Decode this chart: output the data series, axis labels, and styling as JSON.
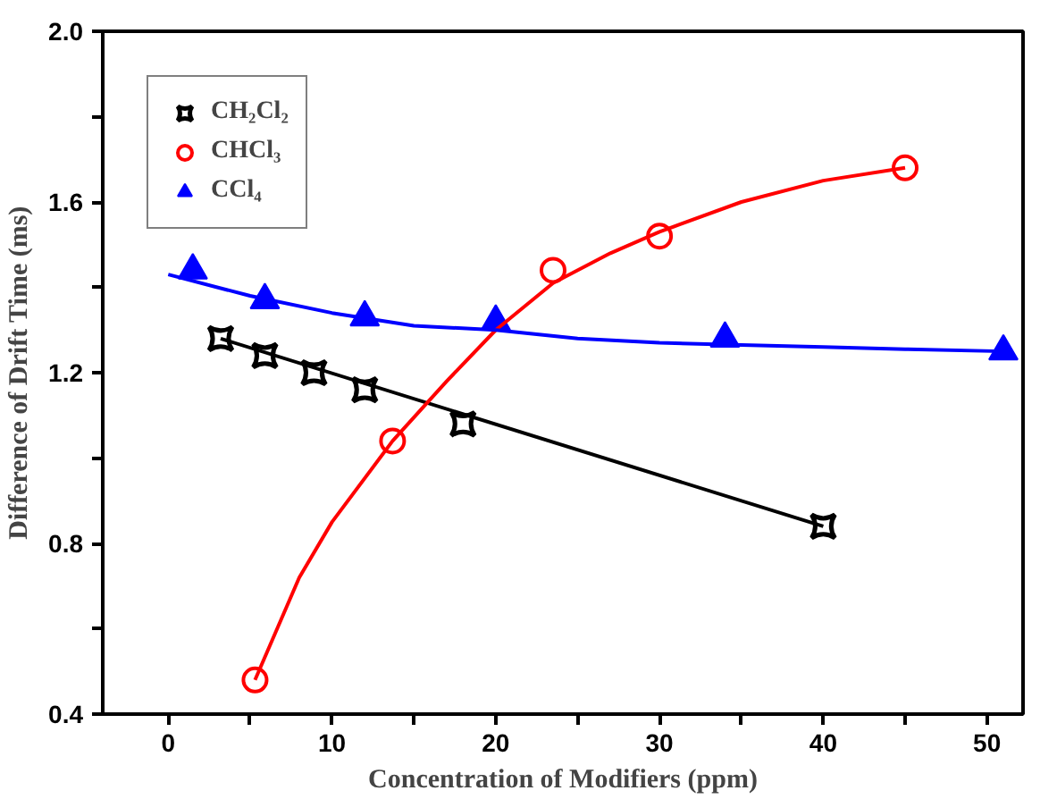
{
  "chart_data": {
    "type": "scatter",
    "xlabel": "Concentration of Modifiers (ppm)",
    "ylabel": "Difference of Drift Time (ms)",
    "xlim": [
      -4,
      52.2
    ],
    "ylim": [
      0.4,
      2.0
    ],
    "xticks": [
      0,
      {
        "value": 5,
        "label": null
      },
      10,
      {
        "value": 15,
        "label": null
      },
      20,
      {
        "value": 25,
        "label": null
      },
      30,
      {
        "value": 35,
        "label": null
      },
      40,
      {
        "value": 45,
        "label": null
      },
      50
    ],
    "yticks": [
      {
        "value": 0.4,
        "label": "0.4"
      },
      {
        "value": 0.6,
        "label": null
      },
      {
        "value": 0.8,
        "label": "0.8"
      },
      {
        "value": 1.0,
        "label": null
      },
      {
        "value": 1.2,
        "label": "1.2"
      },
      {
        "value": 1.4,
        "label": null
      },
      {
        "value": 1.6,
        "label": "1.6"
      },
      {
        "value": 1.8,
        "label": null
      },
      {
        "value": 2.0,
        "label": "2.0"
      }
    ],
    "grid": false,
    "legend": "top left",
    "series": [
      {
        "name": "CH₂Cl₂",
        "color": "#000000",
        "marker": "square",
        "x": [
          3.2,
          5.9,
          8.9,
          12.0,
          18.0,
          40.0
        ],
        "values": [
          1.28,
          1.24,
          1.2,
          1.16,
          1.08,
          0.84
        ]
      },
      {
        "name": "CHCl₃",
        "color": "#ff0000",
        "marker": "circle",
        "x": [
          5.3,
          13.7,
          23.5,
          30.0,
          45.0
        ],
        "values": [
          0.48,
          1.04,
          1.44,
          1.52,
          1.68
        ]
      },
      {
        "name": "CCl₄",
        "color": "#0000ff",
        "marker": "triangle",
        "x": [
          1.5,
          5.9,
          12.0,
          20.0,
          34.0,
          51.0
        ],
        "values": [
          1.44,
          1.37,
          1.33,
          1.32,
          1.28,
          1.25
        ]
      },
      {
        "type": "line",
        "color": "#000000",
        "x": [
          3.2,
          40.0
        ],
        "values": [
          1.28,
          0.84
        ]
      },
      {
        "type": "line",
        "color": "#ff0000",
        "x": [
          5.3,
          8,
          10,
          13.7,
          17,
          20,
          23.5,
          27,
          30,
          35,
          40,
          45
        ],
        "values": [
          0.48,
          0.72,
          0.85,
          1.04,
          1.18,
          1.3,
          1.41,
          1.48,
          1.53,
          1.6,
          1.65,
          1.68
        ]
      },
      {
        "type": "line",
        "color": "#0000ff",
        "x": [
          0,
          5,
          10,
          15,
          20,
          25,
          30,
          35,
          40,
          45,
          51
        ],
        "values": [
          1.43,
          1.38,
          1.34,
          1.31,
          1.3,
          1.28,
          1.27,
          1.265,
          1.26,
          1.255,
          1.25
        ]
      }
    ]
  }
}
